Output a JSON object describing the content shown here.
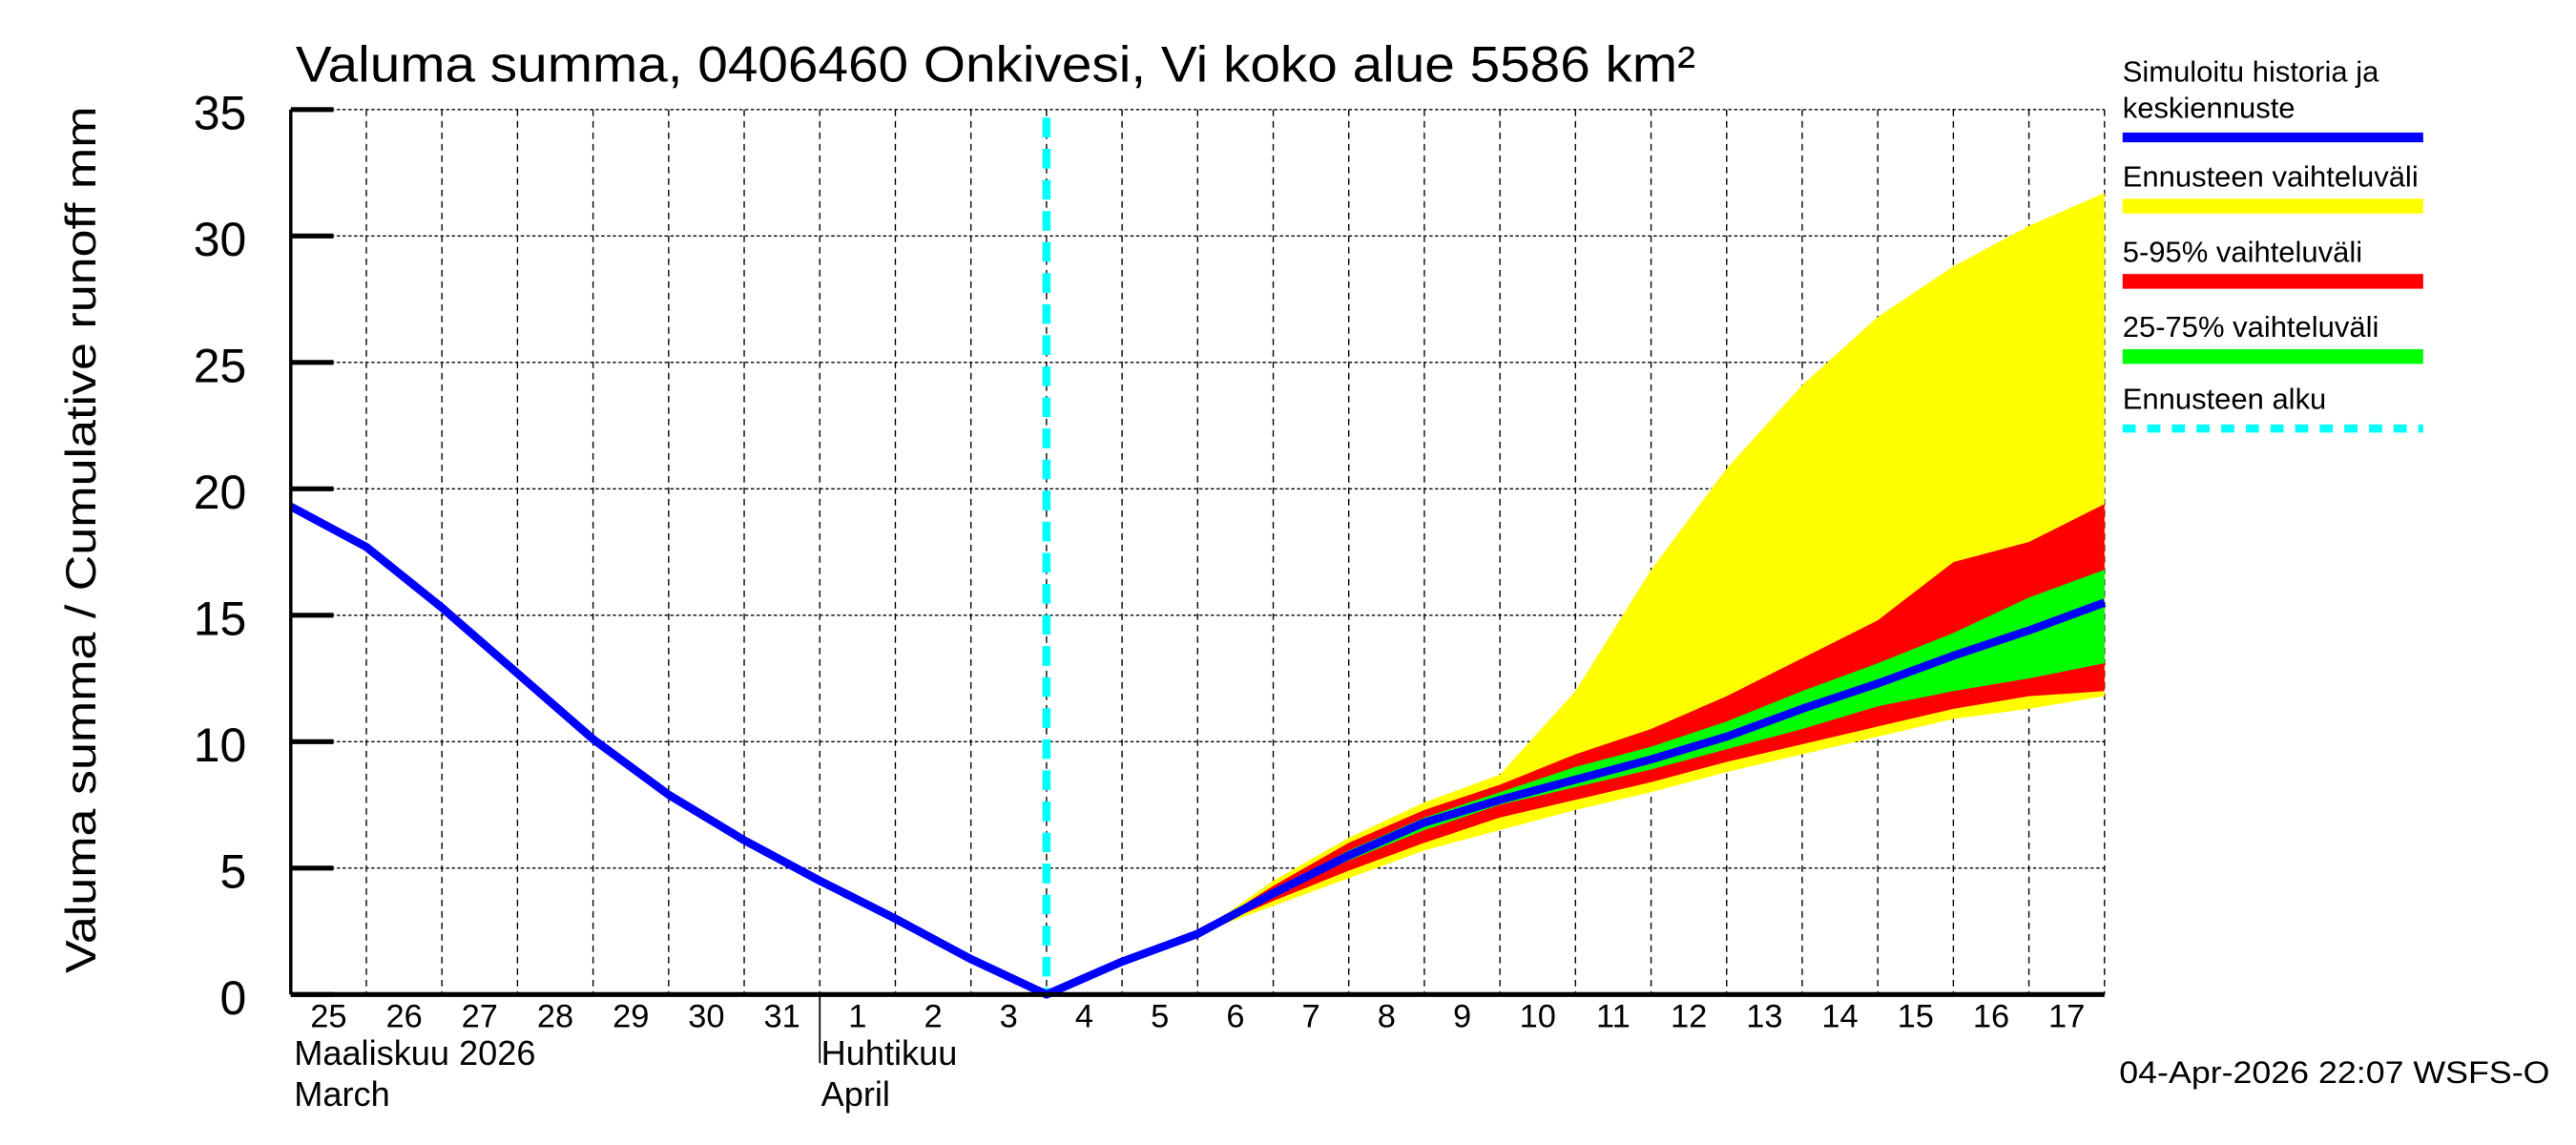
{
  "chart_data": {
    "type": "area",
    "title": "Valuma summa, 0406460 Onkivesi, Vi koko alue 5586 km²",
    "ylabel": "Valuma summa / Cumulative runoff    mm",
    "ylim": [
      0,
      35
    ],
    "yticks": [
      0,
      5,
      10,
      15,
      20,
      25,
      30,
      35
    ],
    "grid": true,
    "legend_placement": "right",
    "x_dates": [
      "2026-03-25",
      "2026-03-26",
      "2026-03-27",
      "2026-03-28",
      "2026-03-29",
      "2026-03-30",
      "2026-03-31",
      "2026-04-01",
      "2026-04-02",
      "2026-04-03",
      "2026-04-04",
      "2026-04-05",
      "2026-04-06",
      "2026-04-07",
      "2026-04-08",
      "2026-04-09",
      "2026-04-10",
      "2026-04-11",
      "2026-04-12",
      "2026-04-13",
      "2026-04-14",
      "2026-04-15",
      "2026-04-16",
      "2026-04-17",
      "2026-04-18"
    ],
    "xtick_labels": [
      "25",
      "26",
      "27",
      "28",
      "29",
      "30",
      "31",
      "1",
      "2",
      "3",
      "4",
      "5",
      "6",
      "7",
      "8",
      "9",
      "10",
      "11",
      "12",
      "13",
      "14",
      "15",
      "16",
      "17"
    ],
    "month_labels": [
      {
        "line1": "Maaliskuu 2026",
        "line2": "March",
        "start_date": "2026-03-25"
      },
      {
        "line1": "Huhtikuu",
        "line2": "April",
        "start_date": "2026-04-01"
      }
    ],
    "forecast_start": "2026-04-04",
    "series": [
      {
        "name": "Simuloitu historia ja keskiennuste",
        "color": "#0000ff",
        "kind": "line",
        "values": [
          19.3,
          17.7,
          15.3,
          12.7,
          10.1,
          7.9,
          6.1,
          4.5,
          3.0,
          1.4,
          0.0,
          1.3,
          2.4,
          4.0,
          5.5,
          6.8,
          7.7,
          8.5,
          9.3,
          10.2,
          11.3,
          12.3,
          13.4,
          14.4,
          15.5
        ]
      },
      {
        "name": "Ennusteen vaihteluväli",
        "color": "#ffff00",
        "kind": "band",
        "start_index": 12,
        "upper": [
          2.4,
          4.5,
          6.2,
          7.6,
          8.7,
          12.0,
          16.8,
          20.8,
          24.1,
          26.8,
          28.8,
          30.4,
          31.7
        ],
        "lower": [
          2.4,
          3.5,
          4.6,
          5.7,
          6.5,
          7.3,
          8.0,
          8.8,
          9.5,
          10.2,
          10.9,
          11.3,
          11.8
        ]
      },
      {
        "name": "5-95% vaihteluväli",
        "color": "#ff0000",
        "kind": "band",
        "start_index": 12,
        "upper": [
          2.4,
          4.3,
          6.0,
          7.3,
          8.3,
          9.5,
          10.5,
          11.8,
          13.3,
          14.8,
          17.1,
          17.9,
          19.4
        ],
        "lower": [
          2.4,
          3.7,
          4.9,
          6.0,
          7.0,
          7.7,
          8.4,
          9.2,
          9.9,
          10.6,
          11.3,
          11.8,
          12.0
        ]
      },
      {
        "name": "25-75% vaihteluväli",
        "color": "#00ff00",
        "kind": "band",
        "start_index": 12,
        "upper": [
          2.4,
          4.1,
          5.7,
          7.0,
          8.0,
          9.0,
          9.8,
          10.8,
          12.0,
          13.1,
          14.3,
          15.7,
          16.8
        ],
        "lower": [
          2.4,
          3.9,
          5.3,
          6.5,
          7.5,
          8.2,
          8.9,
          9.7,
          10.5,
          11.4,
          12.0,
          12.5,
          13.1
        ]
      },
      {
        "name": "Ennusteen alku",
        "color": "#00ffff",
        "kind": "vline"
      }
    ],
    "footer": "04-Apr-2026 22:07 WSFS-O"
  }
}
